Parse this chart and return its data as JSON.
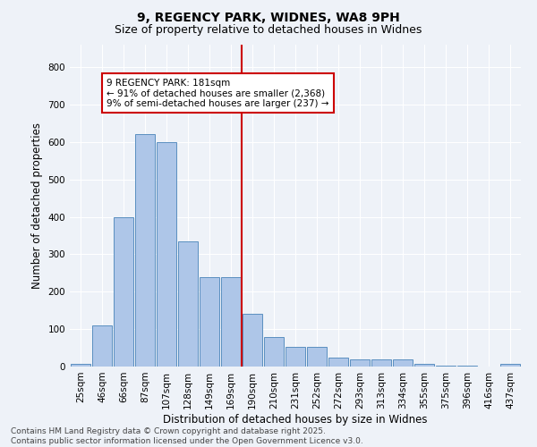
{
  "title": "9, REGENCY PARK, WIDNES, WA8 9PH",
  "subtitle": "Size of property relative to detached houses in Widnes",
  "xlabel": "Distribution of detached houses by size in Widnes",
  "ylabel": "Number of detached properties",
  "categories": [
    "25sqm",
    "46sqm",
    "66sqm",
    "87sqm",
    "107sqm",
    "128sqm",
    "149sqm",
    "169sqm",
    "190sqm",
    "210sqm",
    "231sqm",
    "252sqm",
    "272sqm",
    "293sqm",
    "313sqm",
    "334sqm",
    "355sqm",
    "375sqm",
    "396sqm",
    "416sqm",
    "437sqm"
  ],
  "values": [
    7,
    110,
    400,
    620,
    600,
    335,
    240,
    240,
    140,
    80,
    52,
    52,
    25,
    20,
    18,
    18,
    7,
    3,
    2,
    1,
    6
  ],
  "bar_color": "#aec6e8",
  "bar_edge_color": "#5a8fc0",
  "vline_x_index": 8,
  "vline_color": "#cc0000",
  "annotation_text": "9 REGENCY PARK: 181sqm\n← 91% of detached houses are smaller (2,368)\n9% of semi-detached houses are larger (237) →",
  "annotation_box_color": "#ffffff",
  "annotation_box_edge_color": "#cc0000",
  "ylim": [
    0,
    860
  ],
  "yticks": [
    0,
    100,
    200,
    300,
    400,
    500,
    600,
    700,
    800
  ],
  "background_color": "#eef2f8",
  "grid_color": "#ffffff",
  "footer_text": "Contains HM Land Registry data © Crown copyright and database right 2025.\nContains public sector information licensed under the Open Government Licence v3.0.",
  "title_fontsize": 10,
  "subtitle_fontsize": 9,
  "axis_label_fontsize": 8.5,
  "tick_fontsize": 7.5,
  "annotation_fontsize": 7.5,
  "footer_fontsize": 6.5
}
